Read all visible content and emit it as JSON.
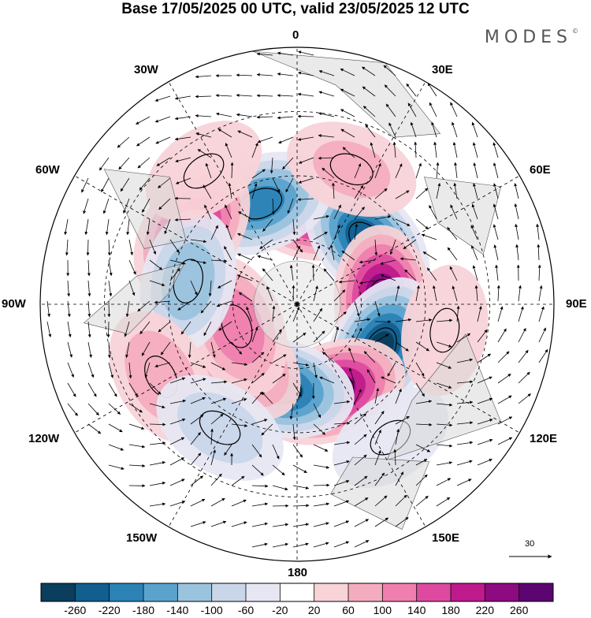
{
  "title": "Base 17/05/2025 00 UTC, valid 23/05/2025 12 UTC",
  "brand": "MODES",
  "brand_mark": "©",
  "longitude_labels": [
    {
      "text": "0",
      "name": "lon-label-0"
    },
    {
      "text": "30E",
      "name": "lon-label-30e"
    },
    {
      "text": "60E",
      "name": "lon-label-60e"
    },
    {
      "text": "90E",
      "name": "lon-label-90e"
    },
    {
      "text": "120E",
      "name": "lon-label-120e"
    },
    {
      "text": "150E",
      "name": "lon-label-150e"
    },
    {
      "text": "180",
      "name": "lon-label-180"
    },
    {
      "text": "150W",
      "name": "lon-label-150w"
    },
    {
      "text": "120W",
      "name": "lon-label-120w"
    },
    {
      "text": "90W",
      "name": "lon-label-90w"
    },
    {
      "text": "60W",
      "name": "lon-label-60w"
    },
    {
      "text": "30W",
      "name": "lon-label-30w"
    }
  ],
  "reference_vector_label": "30",
  "colorbar": {
    "ticks": [
      "-260",
      "-220",
      "-180",
      "-140",
      "-100",
      "-60",
      "-20",
      "20",
      "60",
      "100",
      "140",
      "180",
      "220",
      "260"
    ],
    "colors": [
      "#0b3d5c",
      "#115f8e",
      "#2b82b5",
      "#5aa3cd",
      "#9ac3de",
      "#c9d6e9",
      "#e6e7f2",
      "#ffffff",
      "#f8d3d8",
      "#f4adbf",
      "#ee7fae",
      "#dd4a9f",
      "#be1a8c",
      "#8e0a81",
      "#5c0470"
    ]
  },
  "anomalies": [
    {
      "lon": 10,
      "colat": 22,
      "value": 240
    },
    {
      "lon": 48,
      "colat": 22,
      "value": -260
    },
    {
      "lon": 88,
      "colat": 20,
      "value": 270
    },
    {
      "lon": 118,
      "colat": 22,
      "value": -270
    },
    {
      "lon": 158,
      "colat": 22,
      "value": 250
    },
    {
      "lon": -168,
      "colat": 20,
      "value": -250
    },
    {
      "lon": -132,
      "colat": 18,
      "value": 170
    },
    {
      "lon": -110,
      "colat": 15,
      "value": 140
    },
    {
      "lon": -20,
      "colat": 25,
      "value": -200
    },
    {
      "lon": -55,
      "colat": 30,
      "value": 200
    },
    {
      "lon": -78,
      "colat": 26,
      "value": -140
    },
    {
      "lon": -118,
      "colat": 36,
      "value": 100
    },
    {
      "lon": -148,
      "colat": 34,
      "value": -90
    },
    {
      "lon": 22,
      "colat": 34,
      "value": 70
    },
    {
      "lon": 145,
      "colat": 38,
      "value": -50
    },
    {
      "lon": -35,
      "colat": 38,
      "value": 50
    },
    {
      "lon": 100,
      "colat": 35,
      "value": 60
    }
  ]
}
